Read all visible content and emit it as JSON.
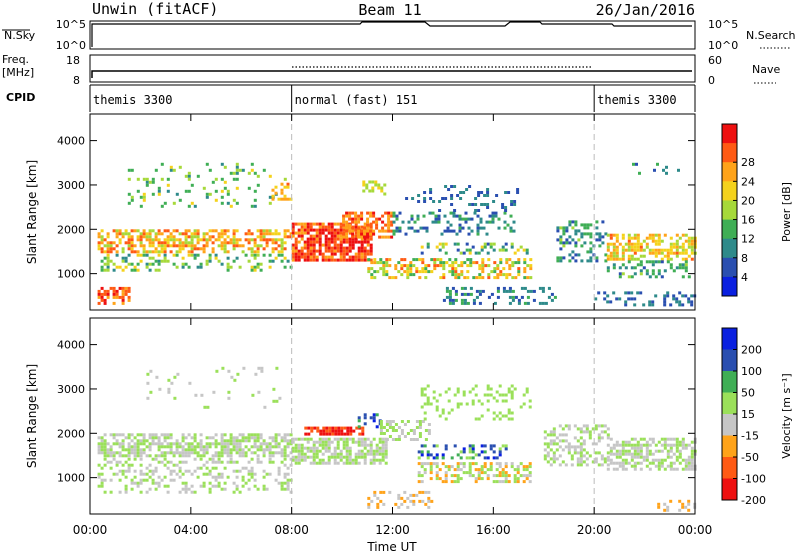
{
  "header": {
    "left": "Unwin (fitACF)",
    "center": "Beam 11",
    "right": "26/Jan/2016"
  },
  "status": {
    "nsky_label": "N.Sky",
    "nsky_ticks": [
      "10^5",
      "10^0"
    ],
    "nsearch_label": "N.Search",
    "freq_label_1": "Freq.",
    "freq_label_2": "[MHz]",
    "freq_ticks": [
      "18",
      "8"
    ],
    "nave_label": "Nave",
    "nave_ticks": [
      "60",
      "0"
    ],
    "cpid_label": "CPID",
    "cpid_segments": [
      {
        "name": "themis 3300",
        "start_hour": 0,
        "end_hour": 8
      },
      {
        "name": "normal (fast) 151",
        "start_hour": 8,
        "end_hour": 20
      },
      {
        "name": "themis 3300",
        "start_hour": 20,
        "end_hour": 24
      }
    ]
  },
  "xaxis": {
    "label": "Time UT",
    "ticks": [
      "00:00",
      "04:00",
      "08:00",
      "12:00",
      "16:00",
      "20:00",
      "00:00"
    ],
    "range_hours": [
      0,
      24
    ]
  },
  "chart_data": [
    {
      "type": "heatmap",
      "name": "power",
      "ylabel": "Slant Range [km]",
      "yticks": [
        1000,
        2000,
        3000,
        4000
      ],
      "ylim": [
        180,
        4600
      ],
      "xlim_hours": [
        0,
        24
      ],
      "colorbar_label": "Power [dB]",
      "colorbar_ticks": [
        "4",
        "8",
        "12",
        "16",
        "20",
        "24",
        "28"
      ],
      "colorbar_range": [
        0,
        30
      ],
      "colors": [
        "#0a20e0",
        "#2a4fb0",
        "#2e8a8a",
        "#3fae55",
        "#a6d93a",
        "#f4d21c",
        "#ffa31a",
        "#ff5a14",
        "#ee1010"
      ],
      "regions": [
        {
          "t": [
            0.3,
            8.0
          ],
          "r": [
            1500,
            2000
          ],
          "v": [
            14,
            26
          ],
          "d": 0.55
        },
        {
          "t": [
            0.3,
            8.0
          ],
          "r": [
            1050,
            1450
          ],
          "v": [
            8,
            18
          ],
          "d": 0.28
        },
        {
          "t": [
            0.3,
            1.5
          ],
          "r": [
            300,
            700
          ],
          "v": [
            20,
            29
          ],
          "d": 0.7
        },
        {
          "t": [
            1.5,
            7.8
          ],
          "r": [
            2500,
            3500
          ],
          "v": [
            8,
            18
          ],
          "d": 0.12
        },
        {
          "t": [
            7.2,
            8.0
          ],
          "r": [
            2700,
            3050
          ],
          "v": [
            18,
            24
          ],
          "d": 0.4
        },
        {
          "t": [
            8.0,
            11.2
          ],
          "r": [
            1300,
            2150
          ],
          "v": [
            22,
            30
          ],
          "d": 0.78
        },
        {
          "t": [
            10.0,
            12.0
          ],
          "r": [
            1800,
            2400
          ],
          "v": [
            20,
            28
          ],
          "d": 0.6
        },
        {
          "t": [
            10.8,
            11.8
          ],
          "r": [
            2800,
            3100
          ],
          "v": [
            14,
            20
          ],
          "d": 0.3
        },
        {
          "t": [
            11.0,
            17.5
          ],
          "r": [
            900,
            1350
          ],
          "v": [
            10,
            26
          ],
          "d": 0.45
        },
        {
          "t": [
            13.0,
            17.5
          ],
          "r": [
            1450,
            1700
          ],
          "v": [
            4,
            18
          ],
          "d": 0.4
        },
        {
          "t": [
            12.0,
            16.8
          ],
          "r": [
            1900,
            2400
          ],
          "v": [
            4,
            12
          ],
          "d": 0.3
        },
        {
          "t": [
            12.5,
            17.0
          ],
          "r": [
            2400,
            3000
          ],
          "v": [
            4,
            10
          ],
          "d": 0.18
        },
        {
          "t": [
            14.0,
            18.5
          ],
          "r": [
            300,
            700
          ],
          "v": [
            4,
            12
          ],
          "d": 0.3
        },
        {
          "t": [
            18.5,
            20.5
          ],
          "r": [
            1300,
            2200
          ],
          "v": [
            4,
            14
          ],
          "d": 0.35
        },
        {
          "t": [
            20.5,
            24.0
          ],
          "r": [
            1300,
            1900
          ],
          "v": [
            14,
            24
          ],
          "d": 0.6
        },
        {
          "t": [
            20.5,
            24.0
          ],
          "r": [
            900,
            1300
          ],
          "v": [
            6,
            14
          ],
          "d": 0.3
        },
        {
          "t": [
            21.5,
            23.5
          ],
          "r": [
            3200,
            3500
          ],
          "v": [
            4,
            12
          ],
          "d": 0.15
        },
        {
          "t": [
            20.0,
            24.0
          ],
          "r": [
            300,
            600
          ],
          "v": [
            4,
            10
          ],
          "d": 0.25
        }
      ]
    },
    {
      "type": "heatmap",
      "name": "velocity",
      "ylabel": "Slant Range [km]",
      "yticks": [
        1000,
        2000,
        3000,
        4000
      ],
      "ylim": [
        180,
        4600
      ],
      "xlim_hours": [
        0,
        24
      ],
      "colorbar_label": "Velocity [m s⁻¹]",
      "colorbar_ticks": [
        "200",
        "100",
        "50",
        "15",
        "-15",
        "-50",
        "-100",
        "-200"
      ],
      "colorbar_range": [
        -250,
        250
      ],
      "colors": [
        "#ee1010",
        "#ff5a14",
        "#ffa31a",
        "#c6c6c6",
        "#9be05a",
        "#3fae55",
        "#2a4fb0",
        "#0a20e0"
      ],
      "regions": [
        {
          "t": [
            0.3,
            8.0
          ],
          "r": [
            1500,
            2000
          ],
          "v": [
            -12,
            12
          ],
          "d": 0.65
        },
        {
          "t": [
            0.3,
            8.0
          ],
          "r": [
            700,
            1450
          ],
          "v": [
            -14,
            14
          ],
          "d": 0.3
        },
        {
          "t": [
            8.0,
            11.8
          ],
          "r": [
            1300,
            1900
          ],
          "v": [
            -12,
            12
          ],
          "d": 0.7
        },
        {
          "t": [
            8.5,
            10.8
          ],
          "r": [
            1950,
            2150
          ],
          "v": [
            -250,
            -150
          ],
          "d": 0.7
        },
        {
          "t": [
            10.5,
            11.5
          ],
          "r": [
            2150,
            2450
          ],
          "v": [
            60,
            240
          ],
          "d": 0.4
        },
        {
          "t": [
            11.5,
            13.5
          ],
          "r": [
            1850,
            2300
          ],
          "v": [
            -12,
            12
          ],
          "d": 0.45
        },
        {
          "t": [
            13.0,
            17.5
          ],
          "r": [
            900,
            1350
          ],
          "v": [
            -110,
            60
          ],
          "d": 0.5
        },
        {
          "t": [
            13.0,
            16.5
          ],
          "r": [
            1450,
            1750
          ],
          "v": [
            20,
            220
          ],
          "d": 0.35
        },
        {
          "t": [
            13.0,
            17.5
          ],
          "r": [
            2300,
            3100
          ],
          "v": [
            15,
            60
          ],
          "d": 0.18
        },
        {
          "t": [
            11.0,
            13.5
          ],
          "r": [
            300,
            700
          ],
          "v": [
            -100,
            -40
          ],
          "d": 0.3
        },
        {
          "t": [
            18.0,
            20.5
          ],
          "r": [
            1300,
            2200
          ],
          "v": [
            -12,
            12
          ],
          "d": 0.4
        },
        {
          "t": [
            20.5,
            24.0
          ],
          "r": [
            1200,
            1900
          ],
          "v": [
            -12,
            12
          ],
          "d": 0.6
        },
        {
          "t": [
            22.5,
            24.0
          ],
          "r": [
            250,
            500
          ],
          "v": [
            -100,
            -40
          ],
          "d": 0.35
        },
        {
          "t": [
            2.0,
            7.5
          ],
          "r": [
            2600,
            3500
          ],
          "v": [
            -60,
            60
          ],
          "d": 0.08
        }
      ]
    }
  ]
}
